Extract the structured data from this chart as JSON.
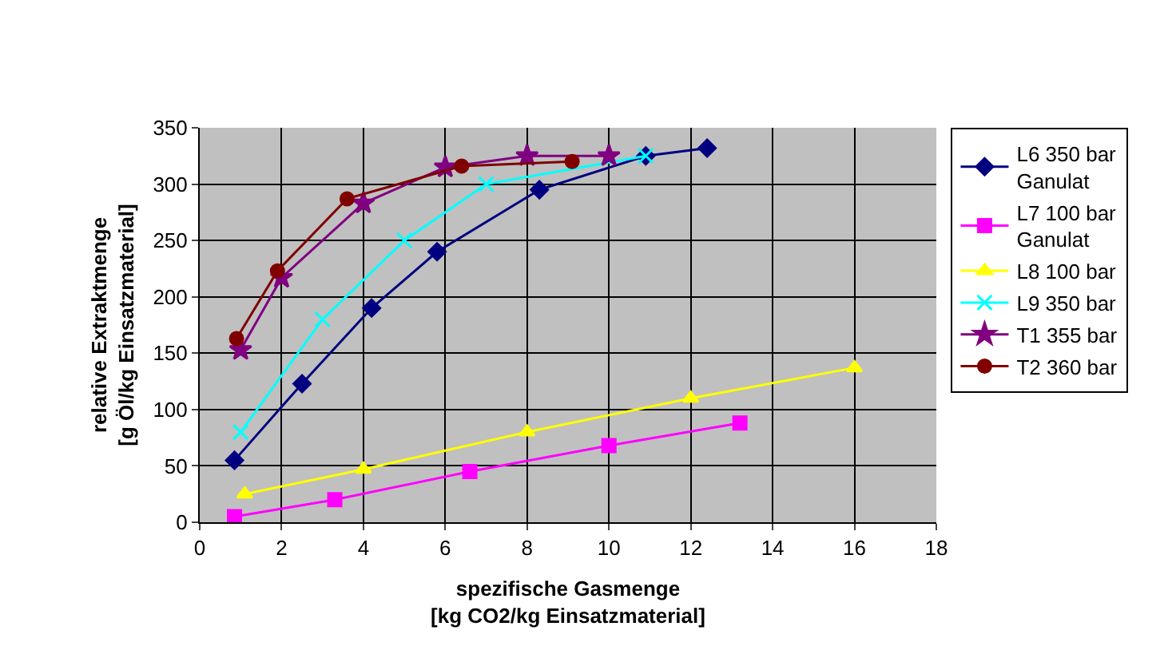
{
  "chart_data": {
    "type": "line",
    "xlabel": "spezifische Gasmenge\n[kg CO2/kg Einsatzmaterial]",
    "ylabel": "relative Extraktmenge\n[g Öl/kg Einsatzmaterial]",
    "xlim": [
      0,
      18
    ],
    "xticks": [
      0,
      2,
      4,
      6,
      8,
      10,
      12,
      14,
      16,
      18
    ],
    "ylim": [
      0,
      350
    ],
    "yticks": [
      0,
      50,
      100,
      150,
      200,
      250,
      300,
      350
    ],
    "grid": true,
    "legend": "right",
    "series": [
      {
        "name": "L6 350 bar Ganulat",
        "color": "#000080",
        "marker": "diamond",
        "x": [
          0.85,
          2.5,
          4.2,
          5.8,
          8.3,
          10.9,
          12.4
        ],
        "values": [
          55,
          123,
          190,
          240,
          295,
          325,
          332
        ]
      },
      {
        "name": "L7 100 bar Ganulat",
        "color": "#ff00ff",
        "marker": "square",
        "x": [
          0.85,
          3.3,
          6.6,
          10,
          13.2
        ],
        "values": [
          5,
          20,
          45,
          68,
          88
        ]
      },
      {
        "name": "L8 100 bar",
        "color": "#ffff00",
        "marker": "triangle",
        "x": [
          1.1,
          4,
          8,
          12,
          16
        ],
        "values": [
          25,
          47,
          80,
          110,
          137
        ]
      },
      {
        "name": "L9 350 bar",
        "color": "#00ffff",
        "marker": "cross",
        "x": [
          1,
          3,
          5,
          7,
          10.9
        ],
        "values": [
          80,
          180,
          250,
          300,
          325
        ]
      },
      {
        "name": "T1 355 bar",
        "color": "#800080",
        "marker": "star",
        "x": [
          1,
          2,
          4,
          6,
          8,
          10
        ],
        "values": [
          153,
          217,
          283,
          315,
          325,
          325
        ]
      },
      {
        "name": "T2 360 bar",
        "color": "#800000",
        "marker": "circle",
        "x": [
          0.9,
          1.9,
          3.6,
          6.4,
          9.1
        ],
        "values": [
          163,
          223,
          287,
          316,
          320
        ]
      }
    ]
  }
}
